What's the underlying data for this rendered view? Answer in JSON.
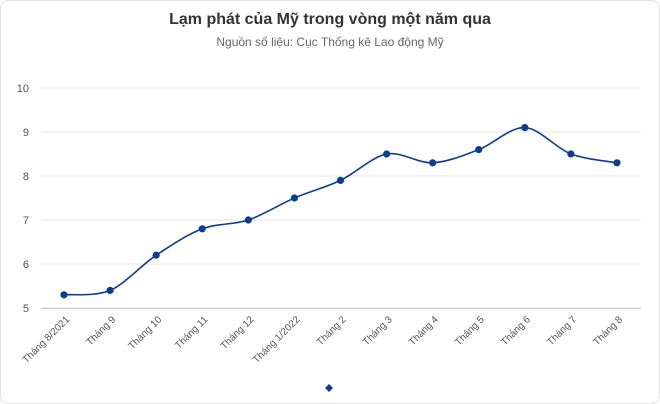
{
  "chart_data": {
    "type": "line",
    "title": "Lạm phát của Mỹ trong vòng một năm qua",
    "subtitle": "Nguồn số liệu: Cục Thống kê Lao động Mỹ",
    "categories": [
      "Tháng 8/2021",
      "Tháng 9",
      "Tháng 10",
      "Tháng 11",
      "Tháng 12",
      "Tháng 1/2022",
      "Tháng 2",
      "Tháng 3",
      "Tháng 4",
      "Tháng 5",
      "Tháng 6",
      "Tháng 7",
      "Tháng 8"
    ],
    "series": [
      {
        "values": [
          5.3,
          5.4,
          6.2,
          6.8,
          7.0,
          7.5,
          7.9,
          8.5,
          8.3,
          8.6,
          9.1,
          8.5,
          8.3
        ]
      }
    ],
    "ylim": [
      5,
      10
    ],
    "yticks": [
      "5",
      "6",
      "7",
      "8",
      "9",
      "10"
    ],
    "grid": true,
    "legend": "bottom-center",
    "line_color": "#0d3d8f",
    "grid_color": "#e6e6e6"
  }
}
